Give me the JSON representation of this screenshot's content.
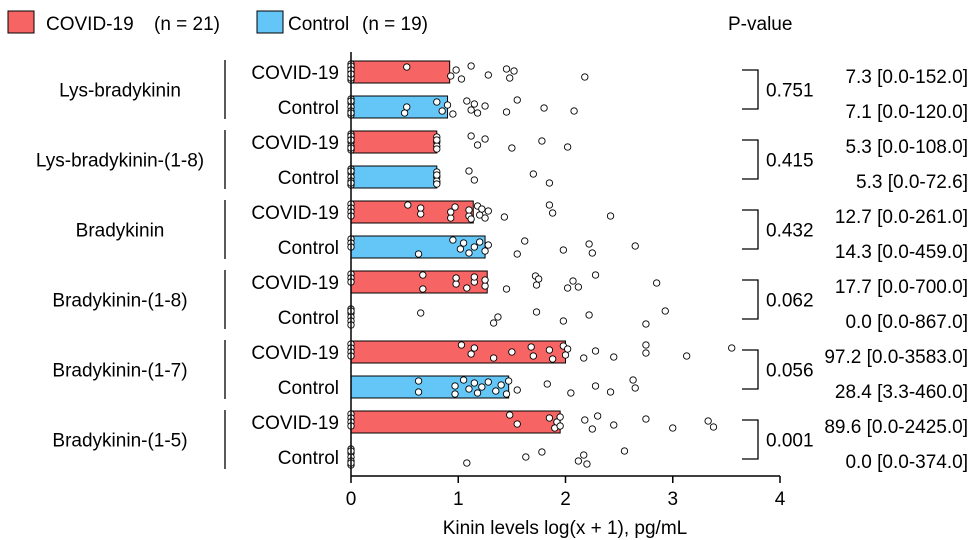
{
  "chart_data": {
    "type": "bar",
    "xlabel": "Kinin levels log(x + 1), pg/mL",
    "xlim": [
      0,
      4
    ],
    "xticks": [
      "0",
      "1",
      "2",
      "3",
      "4"
    ],
    "grid": false,
    "legend_position": "top-left",
    "series": [
      {
        "name": "COVID-19",
        "n_label": "(n = 21)",
        "color": "#f76464"
      },
      {
        "name": "Control",
        "n_label": "(n = 19)",
        "color": "#63c6f6"
      }
    ],
    "pvalue_header": "P-value",
    "groups": [
      {
        "name": "Lys-bradykinin",
        "p_value": "0.751",
        "bars": [
          {
            "label": "COVID-19",
            "value": 0.92,
            "summary": "7.3 [0.0-152.0]",
            "points": [
              0,
              0,
              0,
              0,
              0,
              0,
              0,
              0,
              0,
              0.52,
              0.93,
              0.98,
              1.03,
              1.12,
              1.28,
              1.45,
              1.48,
              1.52,
              2.18
            ]
          },
          {
            "label": "Control",
            "value": 0.9,
            "summary": "7.1 [0.0-120.0]",
            "points": [
              0,
              0,
              0,
              0,
              0,
              0,
              0,
              0.5,
              0.52,
              0.8,
              0.85,
              0.9,
              0.95,
              1.08,
              1.12,
              1.15,
              1.18,
              1.25,
              1.45,
              1.55,
              1.8,
              2.08
            ]
          }
        ]
      },
      {
        "name": "Lys-bradykinin-(1-8)",
        "p_value": "0.415",
        "bars": [
          {
            "label": "COVID-19",
            "value": 0.8,
            "summary": "5.3 [0.0-108.0]",
            "points": [
              0,
              0,
              0,
              0,
              0,
              0,
              0,
              0,
              0.8,
              0.8,
              0.8,
              0.8,
              0.8,
              1.12,
              1.18,
              1.25,
              1.5,
              1.78,
              2.02
            ]
          },
          {
            "label": "Control",
            "value": 0.8,
            "summary": "5.3 [0.0-72.6]",
            "points": [
              0,
              0,
              0,
              0,
              0,
              0,
              0,
              0.8,
              0.8,
              0.8,
              0.8,
              0.8,
              0.8,
              1.1,
              1.15,
              1.7,
              1.85
            ]
          }
        ]
      },
      {
        "name": "Bradykinin",
        "p_value": "0.432",
        "bars": [
          {
            "label": "COVID-19",
            "value": 1.14,
            "summary": "12.7 [0.0-261.0]",
            "points": [
              0,
              0,
              0,
              0,
              0.53,
              0.65,
              0.65,
              0.93,
              0.93,
              0.97,
              1.1,
              1.1,
              1.12,
              1.18,
              1.2,
              1.22,
              1.25,
              1.28,
              1.43,
              1.85,
              1.88,
              2.42
            ]
          },
          {
            "label": "Control",
            "value": 1.25,
            "summary": "14.3 [0.0-459.0]",
            "points": [
              0,
              0,
              0,
              0.63,
              0.95,
              1.02,
              1.05,
              1.1,
              1.15,
              1.2,
              1.25,
              1.28,
              1.55,
              1.62,
              1.98,
              2.22,
              2.25,
              2.65
            ]
          }
        ]
      },
      {
        "name": "Bradykinin-(1-8)",
        "p_value": "0.062",
        "bars": [
          {
            "label": "COVID-19",
            "value": 1.27,
            "summary": "17.7 [0.0-700.0]",
            "points": [
              0,
              0,
              0,
              0.67,
              0.67,
              0.98,
              0.98,
              1.08,
              1.15,
              1.15,
              1.25,
              1.25,
              1.45,
              1.72,
              1.73,
              1.75,
              2.02,
              2.07,
              2.12,
              2.28,
              2.85
            ]
          },
          {
            "label": "Control",
            "value": 0.0,
            "summary": "0.0 [0.0-867.0]",
            "points": [
              0,
              0,
              0,
              0,
              0,
              0,
              0.65,
              1.33,
              1.37,
              1.73,
              1.98,
              2.22,
              2.75,
              2.93
            ]
          }
        ]
      },
      {
        "name": "Bradykinin-(1-7)",
        "p_value": "0.056",
        "bars": [
          {
            "label": "COVID-19",
            "value": 2.0,
            "summary": "97.2 [0.0-3583.0]",
            "points": [
              0,
              0,
              0,
              0,
              1.03,
              1.12,
              1.15,
              1.33,
              1.5,
              1.68,
              1.7,
              1.85,
              1.88,
              1.98,
              2.0,
              2.02,
              2.17,
              2.28,
              2.45,
              2.75,
              2.75,
              3.13,
              3.55
            ]
          },
          {
            "label": "Control",
            "value": 1.47,
            "summary": "28.4 [3.3-460.0]",
            "points": [
              0.63,
              0.63,
              0.97,
              0.97,
              1.05,
              1.1,
              1.15,
              1.18,
              1.22,
              1.28,
              1.35,
              1.4,
              1.45,
              1.47,
              1.55,
              1.83,
              2.05,
              2.28,
              2.42,
              2.63,
              2.65
            ]
          }
        ]
      },
      {
        "name": "Bradykinin-(1-5)",
        "p_value": "0.001",
        "bars": [
          {
            "label": "COVID-19",
            "value": 1.95,
            "summary": "89.6 [0.0-2425.0]",
            "points": [
              0,
              0,
              0,
              0,
              1.48,
              1.55,
              1.85,
              1.9,
              1.92,
              1.95,
              1.95,
              2.18,
              2.25,
              2.3,
              2.45,
              2.75,
              3.0,
              3.33,
              3.38
            ]
          },
          {
            "label": "Control",
            "value": 0.0,
            "summary": "0.0 [0.0-374.0]",
            "points": [
              0,
              0,
              0,
              0,
              0,
              0,
              0,
              1.08,
              1.63,
              1.78,
              2.12,
              2.17,
              2.2,
              2.55
            ]
          }
        ]
      }
    ]
  }
}
